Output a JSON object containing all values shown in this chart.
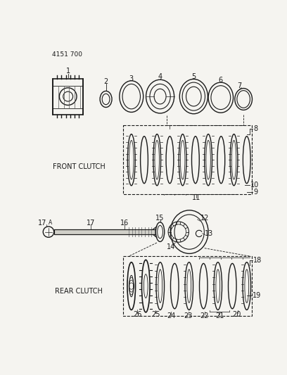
{
  "title": "4151 700",
  "bg_color": "#f5f4f0",
  "line_color": "#1a1a1a",
  "label_front_clutch": "FRONT CLUTCH",
  "label_rear_clutch": "REAR CLUTCH",
  "fig_w": 4.08,
  "fig_h": 5.33,
  "dpi": 100
}
